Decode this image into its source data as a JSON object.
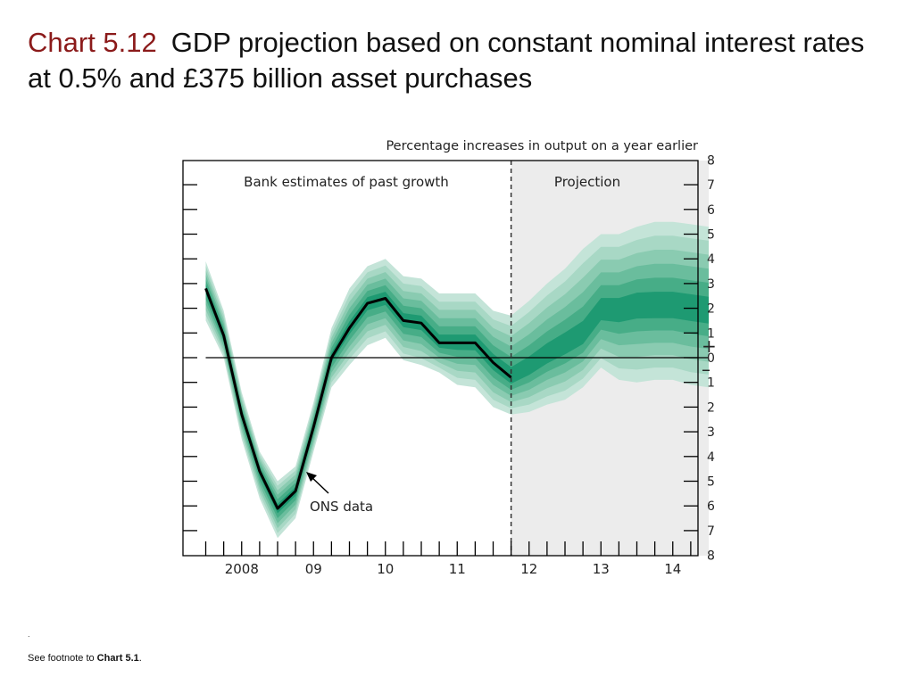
{
  "slide": {
    "chart_number": "Chart 5.12",
    "title": "GDP projection based on constant nominal interest rates at 0.5% and £375 billion asset purchases",
    "dot": ".",
    "footnote_prefix": "See footnote to ",
    "footnote_ref": "Chart 5.1",
    "footnote_suffix": "."
  },
  "colors": {
    "line": "#000000",
    "bands": [
      "#c4e4d8",
      "#a8d8c5",
      "#8acbb1",
      "#6abd9d",
      "#47ad87",
      "#1e9a72"
    ],
    "projection_bg": "#ececec"
  },
  "chart_data": {
    "type": "area",
    "subtype": "fan chart",
    "ylabel": "Percentage increases in output on a year earlier",
    "ylim": [
      -8,
      8
    ],
    "y_ticks": [
      8,
      7,
      6,
      5,
      4,
      3,
      2,
      1,
      0,
      1,
      2,
      3,
      4,
      5,
      6,
      7,
      8
    ],
    "sign_labels": [
      "+",
      "–"
    ],
    "x_tick_labels": [
      "2008",
      "09",
      "10",
      "11",
      "12",
      "13",
      "14"
    ],
    "xlim": [
      2007.5,
      2014.5
    ],
    "x_tick_years": [
      2008,
      2009,
      2010,
      2011,
      2012,
      2013,
      2014
    ],
    "projection_start": 2011.75,
    "projection_end": 2014.5,
    "region_labels": [
      "Bank estimates of past growth",
      "Projection"
    ],
    "annotation": "ONS data",
    "ons_series": {
      "name": "ONS data",
      "x": [
        2007.5,
        2007.75,
        2008.0,
        2008.25,
        2008.5,
        2008.75,
        2009.0,
        2009.25,
        2009.5,
        2009.75,
        2010.0,
        2010.25,
        2010.5,
        2010.75,
        2011.0,
        2011.25,
        2011.5,
        2011.75
      ],
      "y": [
        2.8,
        0.9,
        -2.3,
        -4.6,
        -6.1,
        -5.4,
        -2.8,
        0.0,
        1.2,
        2.2,
        2.4,
        1.5,
        1.4,
        0.6,
        0.6,
        0.6,
        -0.2,
        -0.8
      ]
    },
    "fan": {
      "x": [
        2007.5,
        2007.75,
        2008.0,
        2008.25,
        2008.5,
        2008.75,
        2009.0,
        2009.25,
        2009.5,
        2009.75,
        2010.0,
        2010.25,
        2010.5,
        2010.75,
        2011.0,
        2011.25,
        2011.5,
        2011.75,
        2012.0,
        2012.25,
        2012.5,
        2012.75,
        2013.0,
        2013.25,
        2013.5,
        2013.75,
        2014.0,
        2014.25,
        2014.5
      ],
      "center": [
        2.8,
        0.9,
        -2.3,
        -4.6,
        -6.1,
        -5.4,
        -2.8,
        0.0,
        1.2,
        2.2,
        2.4,
        1.5,
        1.4,
        0.6,
        0.6,
        0.6,
        -0.2,
        -0.8,
        -0.4,
        0.1,
        0.5,
        0.9,
        1.9,
        1.9,
        2.1,
        2.1,
        2.1,
        2.0,
        1.9
      ],
      "upper90": [
        3.9,
        1.9,
        -1.4,
        -3.8,
        -5.0,
        -4.4,
        -1.8,
        1.2,
        2.8,
        3.7,
        4.0,
        3.3,
        3.2,
        2.6,
        2.6,
        2.6,
        1.9,
        1.7,
        2.3,
        3.0,
        3.6,
        4.4,
        5.0,
        5.0,
        5.3,
        5.5,
        5.5,
        5.4,
        5.3
      ],
      "lower90": [
        1.5,
        0.0,
        -3.3,
        -5.7,
        -7.3,
        -6.5,
        -3.8,
        -1.2,
        -0.3,
        0.5,
        0.8,
        -0.1,
        -0.3,
        -0.6,
        -1.1,
        -1.2,
        -2.0,
        -2.3,
        -2.2,
        -1.9,
        -1.7,
        -1.2,
        -0.4,
        -0.9,
        -1.0,
        -0.9,
        -0.9,
        -1.1,
        -1.2
      ]
    }
  }
}
